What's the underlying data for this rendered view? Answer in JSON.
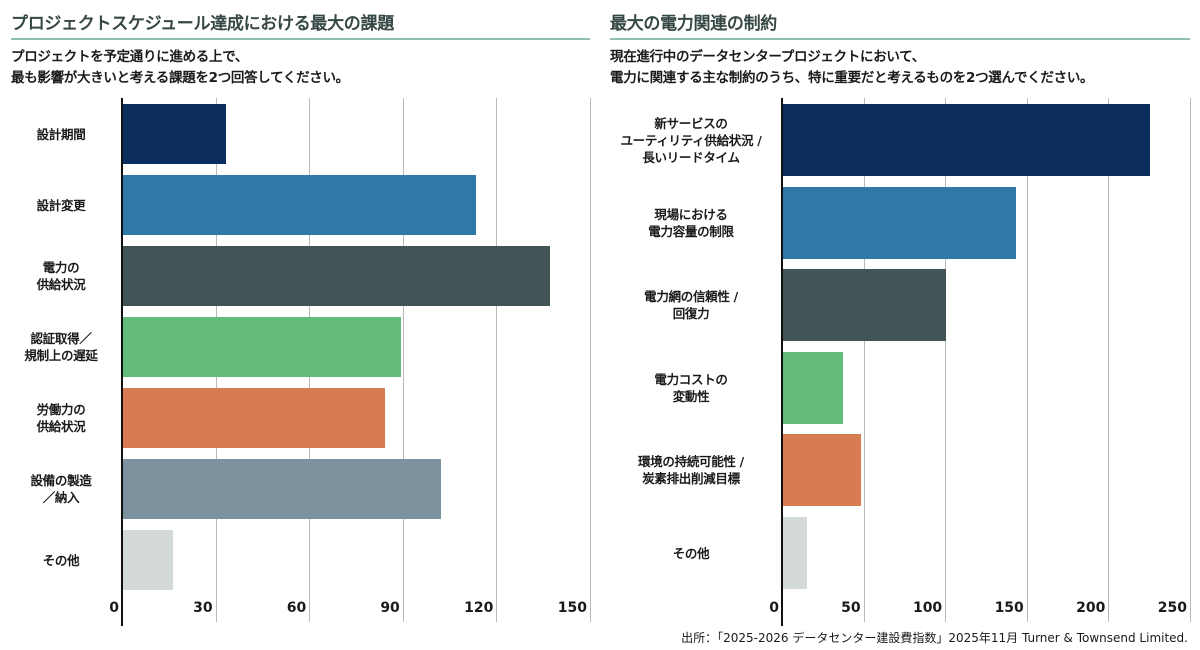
{
  "colors": [
    "#0b2e5e",
    "#2f79a8",
    "#435457",
    "#63bd79",
    "#d77b52",
    "#7c939f",
    "#d4d9da"
  ],
  "title_color": "#364845",
  "rule_color": "#8fc0ae",
  "chart_data": [
    {
      "type": "bar",
      "orientation": "horizontal",
      "title": "プロジェクトスケジュール達成における最大の課題",
      "subtitle": "プロジェクトを予定通りに進める上で、\n最も影響が大きいと考える課題を2つ回答してください。",
      "categories": [
        "設計期間",
        "設計変更",
        "電力の\n供給状況",
        "認証取得／\n規制上の遅延",
        "労働力の\n供給状況",
        "設備の製造\n／納入",
        "その他"
      ],
      "values": [
        33,
        113,
        137,
        89,
        84,
        102,
        16
      ],
      "xlim": [
        0,
        150
      ],
      "ticks": [
        "0",
        "30",
        "60",
        "90",
        "120",
        "150"
      ],
      "grid": true
    },
    {
      "type": "bar",
      "orientation": "horizontal",
      "title": "最大の電力関連の制約",
      "subtitle": "現在進行中のデータセンタープロジェクトにおいて、\n電力に関連する主な制約のうち、特に重要だと考えるものを2つ選んでください。",
      "categories": [
        "新サービスの\nユーティリティ供給状況 /\n長いリードタイム",
        "現場における\n電力容量の制限",
        "電力網の信頼性 /\n回復力",
        "電力コストの\n変動性",
        "環境の持続可能性 /\n炭素排出削減目標",
        "その他"
      ],
      "values": [
        225,
        143,
        100,
        37,
        48,
        15
      ],
      "xlim": [
        0,
        250
      ],
      "ticks": [
        "0",
        "50",
        "100",
        "150",
        "200",
        "250"
      ],
      "grid": true
    }
  ],
  "source": "出所：「2025-2026 データセンター建設費指数」2025年11月 Turner & Townsend Limited."
}
